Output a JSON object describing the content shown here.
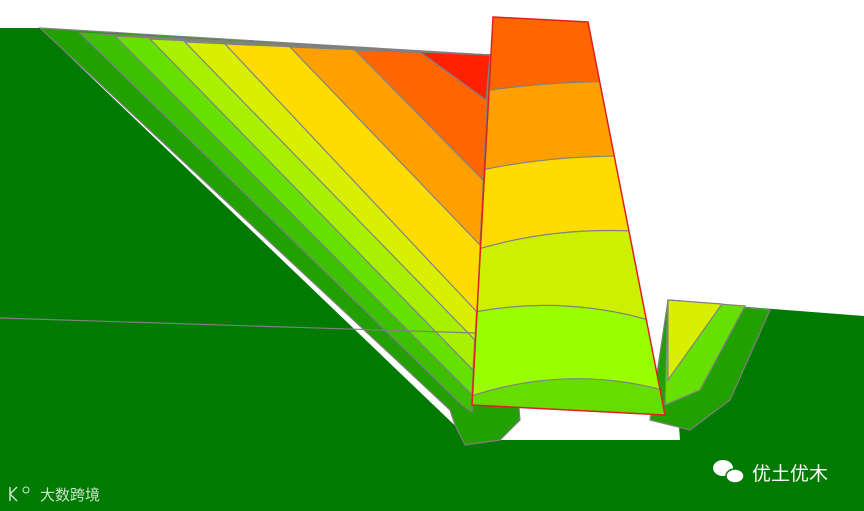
{
  "watermark": {
    "text": "大数跨境"
  },
  "brand": {
    "text": "优土优木"
  }
}
